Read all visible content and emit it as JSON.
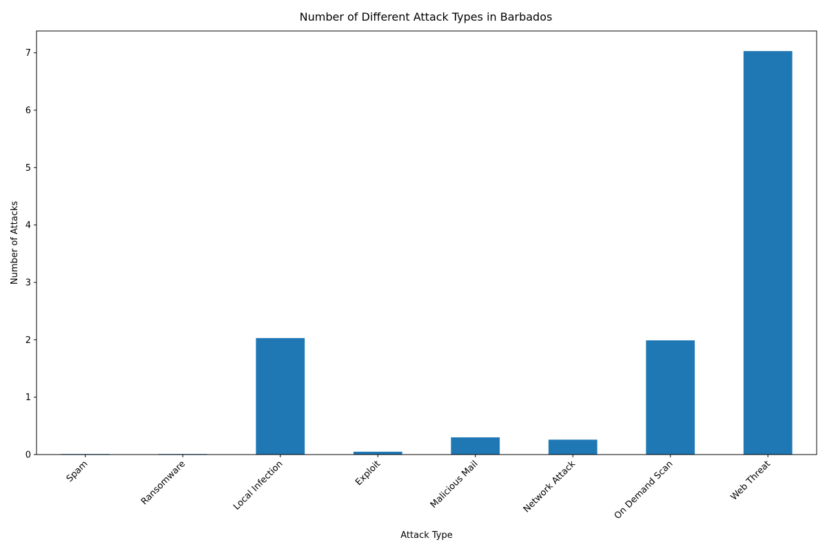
{
  "chart_data": {
    "type": "bar",
    "title": "Number of Different Attack Types in Barbados",
    "xlabel": "Attack Type",
    "ylabel": "Number of Attacks",
    "categories": [
      "Spam",
      "Ransomware",
      "Local Infection",
      "Exploit",
      "Malicious Mail",
      "Network Attack",
      "On Demand Scan",
      "Web Threat"
    ],
    "values": [
      0.01,
      0.01,
      2.03,
      0.05,
      0.3,
      0.26,
      1.99,
      7.03
    ],
    "ylim": [
      0,
      7.38
    ],
    "yticks": [
      0,
      1,
      2,
      3,
      4,
      5,
      6,
      7
    ],
    "grid": false,
    "legend": "none",
    "bar_color": "#1f77b4"
  }
}
